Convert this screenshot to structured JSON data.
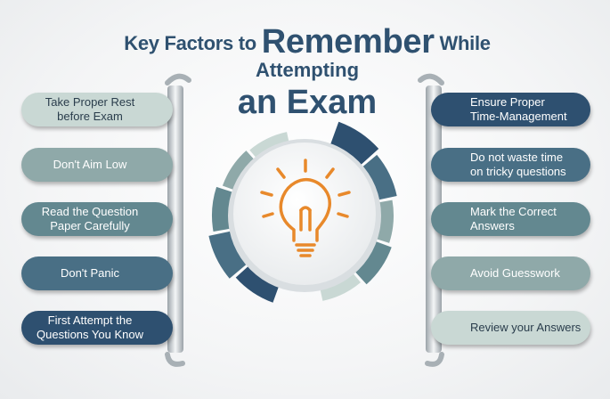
{
  "title": {
    "line1_pre": "Key Factors to",
    "line1_big": "Remember",
    "line1_post": "While",
    "line2": "Attempting",
    "line3": "an Exam"
  },
  "left_items": [
    {
      "line1": "Take Proper Rest",
      "line2": "before Exam"
    },
    {
      "line1": "Don't Aim Low",
      "line2": ""
    },
    {
      "line1": "Read the Question",
      "line2": "Paper Carefully"
    },
    {
      "line1": "Don't Panic",
      "line2": ""
    },
    {
      "line1": "First Attempt the",
      "line2": "Questions You Know"
    }
  ],
  "right_items": [
    {
      "line1": "Ensure Proper",
      "line2": "Time-Management"
    },
    {
      "line1": "Do not waste time",
      "line2": "on tricky questions"
    },
    {
      "line1": "Mark the Correct",
      "line2": "Answers"
    },
    {
      "line1": "Avoid Guesswork",
      "line2": ""
    },
    {
      "line1": "Review your Answers",
      "line2": ""
    }
  ],
  "center_icon": "lightbulb-icon",
  "colors": {
    "title": "#2f5170",
    "accent_orange": "#e8892b",
    "pill_shades": [
      "#c9d8d4",
      "#8fa9a9",
      "#638890",
      "#496f85",
      "#2e5070"
    ]
  }
}
